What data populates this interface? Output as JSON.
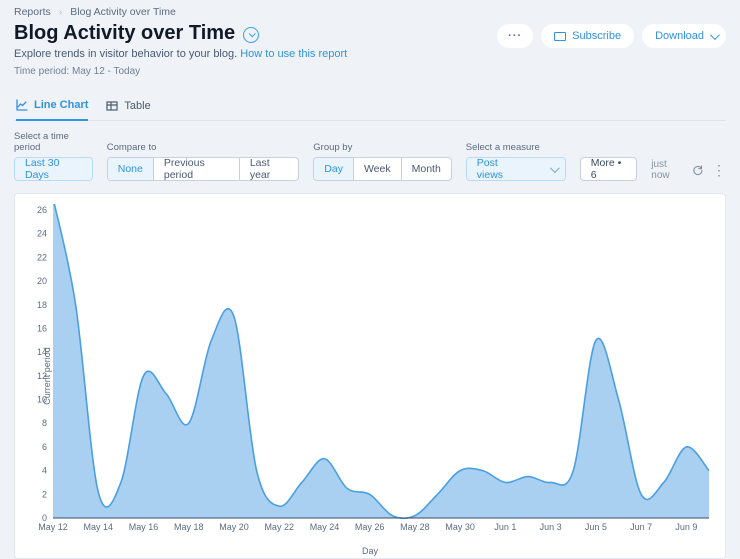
{
  "breadcrumb": {
    "root": "Reports",
    "current": "Blog Activity over Time"
  },
  "header": {
    "title": "Blog Activity over Time",
    "subtitle_prefix": "Explore trends in visitor behavior to your blog. ",
    "subtitle_link": "How to use this report",
    "time_period": "Time period: May 12 - Today"
  },
  "actions": {
    "more": "···",
    "subscribe": "Subscribe",
    "download": "Download"
  },
  "tabs": {
    "line_chart": "Line Chart",
    "table": "Table"
  },
  "controls": {
    "time_label": "Select a time period",
    "time_value": "Last 30 Days",
    "compare_label": "Compare to",
    "compare_options": {
      "none": "None",
      "prev": "Previous period",
      "last_year": "Last year"
    },
    "group_label": "Group by",
    "group_options": {
      "day": "Day",
      "week": "Week",
      "month": "Month"
    },
    "measure_label": "Select a measure",
    "measure_value": "Post views",
    "more_button": "More • 6",
    "updated": "just now"
  },
  "chart": {
    "type": "area-line",
    "y_axis_label": "Current period",
    "x_axis_label": "Day",
    "ylim": [
      0,
      26
    ],
    "ytick_step": 2,
    "x_labels": [
      "May 12",
      "May 14",
      "May 16",
      "May 18",
      "May 20",
      "May 22",
      "May 24",
      "May 26",
      "May 28",
      "May 30",
      "Jun 1",
      "Jun 3",
      "Jun 5",
      "Jun 7",
      "Jun 9"
    ],
    "x_label_step": 2,
    "series_color": "#4a9fe2",
    "fill_color": "#9bc8ef",
    "background_color": "#ffffff",
    "tick_fontsize": 9,
    "data": [
      {
        "x": 0,
        "y": 27
      },
      {
        "x": 1,
        "y": 18
      },
      {
        "x": 2,
        "y": 2.2
      },
      {
        "x": 3,
        "y": 3
      },
      {
        "x": 4,
        "y": 12
      },
      {
        "x": 5,
        "y": 10.5
      },
      {
        "x": 6,
        "y": 8
      },
      {
        "x": 7,
        "y": 15
      },
      {
        "x": 8,
        "y": 17
      },
      {
        "x": 9,
        "y": 4
      },
      {
        "x": 10,
        "y": 1
      },
      {
        "x": 11,
        "y": 3
      },
      {
        "x": 12,
        "y": 5
      },
      {
        "x": 13,
        "y": 2.5
      },
      {
        "x": 14,
        "y": 2
      },
      {
        "x": 15,
        "y": 0.2
      },
      {
        "x": 16,
        "y": 0.2
      },
      {
        "x": 17,
        "y": 2
      },
      {
        "x": 18,
        "y": 4
      },
      {
        "x": 19,
        "y": 4
      },
      {
        "x": 20,
        "y": 3
      },
      {
        "x": 21,
        "y": 3.5
      },
      {
        "x": 22,
        "y": 3
      },
      {
        "x": 23,
        "y": 4
      },
      {
        "x": 24,
        "y": 15
      },
      {
        "x": 25,
        "y": 10
      },
      {
        "x": 26,
        "y": 2
      },
      {
        "x": 27,
        "y": 3
      },
      {
        "x": 28,
        "y": 6
      },
      {
        "x": 29,
        "y": 4
      }
    ]
  }
}
